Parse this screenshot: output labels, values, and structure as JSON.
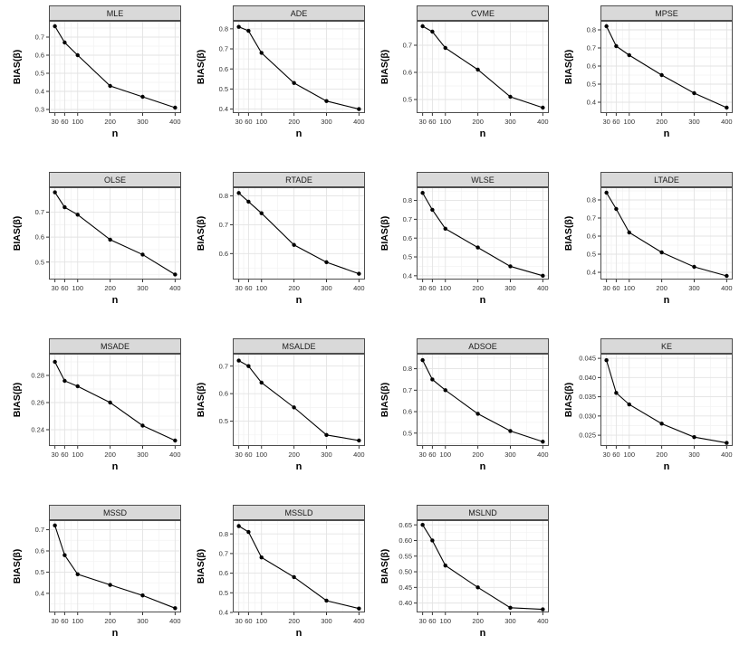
{
  "figure": {
    "xlabel": "n",
    "ylabel": "BIAS(β)",
    "x": [
      30,
      60,
      100,
      200,
      300,
      400
    ],
    "xtick_labels": [
      "30",
      "60",
      "100",
      "200",
      "300",
      "400"
    ],
    "x_minor": [
      45,
      80,
      150,
      250,
      350
    ],
    "colors": {
      "line": "#000000",
      "point": "#000000",
      "strip_bg": "#d9d9d9",
      "panel_border": "#4d4d4d",
      "grid_major": "#e3e3e3",
      "grid_minor": "#f2f2f2",
      "text": "#1a1a1a"
    }
  },
  "chart_data": [
    {
      "type": "line",
      "title": "MLE",
      "x": [
        30,
        60,
        100,
        200,
        300,
        400
      ],
      "values": [
        0.76,
        0.67,
        0.6,
        0.43,
        0.37,
        0.31
      ],
      "ytick_labels": [
        "0.3",
        "0.4",
        "0.5",
        "0.6",
        "0.7"
      ],
      "ylim": [
        0.28,
        0.79
      ],
      "xlabel": "n",
      "ylabel": "BIAS(β)"
    },
    {
      "type": "line",
      "title": "ADE",
      "x": [
        30,
        60,
        100,
        200,
        300,
        400
      ],
      "values": [
        0.81,
        0.79,
        0.68,
        0.53,
        0.44,
        0.4
      ],
      "ytick_labels": [
        "0.4",
        "0.5",
        "0.6",
        "0.7",
        "0.8"
      ],
      "ylim": [
        0.38,
        0.84
      ],
      "xlabel": "n",
      "ylabel": "BIAS(β)"
    },
    {
      "type": "line",
      "title": "CVME",
      "x": [
        30,
        60,
        100,
        200,
        300,
        400
      ],
      "values": [
        0.77,
        0.75,
        0.69,
        0.61,
        0.51,
        0.47
      ],
      "ytick_labels": [
        "0.5",
        "0.6",
        "0.7"
      ],
      "ylim": [
        0.45,
        0.79
      ],
      "xlabel": "n",
      "ylabel": "BIAS(β)"
    },
    {
      "type": "line",
      "title": "MPSE",
      "x": [
        30,
        60,
        100,
        200,
        300,
        400
      ],
      "values": [
        0.82,
        0.71,
        0.66,
        0.55,
        0.45,
        0.37
      ],
      "ytick_labels": [
        "0.4",
        "0.5",
        "0.6",
        "0.7",
        "0.8"
      ],
      "ylim": [
        0.34,
        0.85
      ],
      "xlabel": "n",
      "ylabel": "BIAS(β)"
    },
    {
      "type": "line",
      "title": "OLSE",
      "x": [
        30,
        60,
        100,
        200,
        300,
        400
      ],
      "values": [
        0.78,
        0.72,
        0.69,
        0.59,
        0.53,
        0.45
      ],
      "ytick_labels": [
        "0.5",
        "0.6",
        "0.7"
      ],
      "ylim": [
        0.43,
        0.8
      ],
      "xlabel": "n",
      "ylabel": "BIAS(β)"
    },
    {
      "type": "line",
      "title": "RTADE",
      "x": [
        30,
        60,
        100,
        200,
        300,
        400
      ],
      "values": [
        0.81,
        0.78,
        0.74,
        0.63,
        0.57,
        0.53
      ],
      "ytick_labels": [
        "0.6",
        "0.7",
        "0.8"
      ],
      "ylim": [
        0.51,
        0.83
      ],
      "xlabel": "n",
      "ylabel": "BIAS(β)"
    },
    {
      "type": "line",
      "title": "WLSE",
      "x": [
        30,
        60,
        100,
        200,
        300,
        400
      ],
      "values": [
        0.84,
        0.75,
        0.65,
        0.55,
        0.45,
        0.4
      ],
      "ytick_labels": [
        "0.4",
        "0.5",
        "0.6",
        "0.7",
        "0.8"
      ],
      "ylim": [
        0.38,
        0.87
      ],
      "xlabel": "n",
      "ylabel": "BIAS(β)"
    },
    {
      "type": "line",
      "title": "LTADE",
      "x": [
        30,
        60,
        100,
        200,
        300,
        400
      ],
      "values": [
        0.84,
        0.75,
        0.62,
        0.51,
        0.43,
        0.38
      ],
      "ytick_labels": [
        "0.4",
        "0.5",
        "0.6",
        "0.7",
        "0.8"
      ],
      "ylim": [
        0.36,
        0.87
      ],
      "xlabel": "n",
      "ylabel": "BIAS(β)"
    },
    {
      "type": "line",
      "title": "MSADE",
      "x": [
        30,
        60,
        100,
        200,
        300,
        400
      ],
      "values": [
        0.29,
        0.276,
        0.272,
        0.26,
        0.243,
        0.232
      ],
      "ytick_labels": [
        "0.24",
        "0.26",
        "0.28"
      ],
      "ylim": [
        0.228,
        0.296
      ],
      "xlabel": "n",
      "ylabel": "BIAS(β)"
    },
    {
      "type": "line",
      "title": "MSALDE",
      "x": [
        30,
        60,
        100,
        200,
        300,
        400
      ],
      "values": [
        0.72,
        0.7,
        0.64,
        0.55,
        0.45,
        0.43
      ],
      "ytick_labels": [
        "0.5",
        "0.6",
        "0.7"
      ],
      "ylim": [
        0.41,
        0.745
      ],
      "xlabel": "n",
      "ylabel": "BIAS(β)"
    },
    {
      "type": "line",
      "title": "ADSOE",
      "x": [
        30,
        60,
        100,
        200,
        300,
        400
      ],
      "values": [
        0.84,
        0.75,
        0.7,
        0.59,
        0.51,
        0.46
      ],
      "ytick_labels": [
        "0.5",
        "0.6",
        "0.7",
        "0.8"
      ],
      "ylim": [
        0.44,
        0.87
      ],
      "xlabel": "n",
      "ylabel": "BIAS(β)"
    },
    {
      "type": "line",
      "title": "KE",
      "x": [
        30,
        60,
        100,
        200,
        300,
        400
      ],
      "values": [
        0.0445,
        0.036,
        0.033,
        0.028,
        0.0245,
        0.023
      ],
      "ytick_labels": [
        "0.025",
        "0.030",
        "0.035",
        "0.040",
        "0.045"
      ],
      "ylim": [
        0.0222,
        0.0462
      ],
      "xlabel": "n",
      "ylabel": "BIAS(β)"
    },
    {
      "type": "line",
      "title": "MSSD",
      "x": [
        30,
        60,
        100,
        200,
        300,
        400
      ],
      "values": [
        0.72,
        0.58,
        0.49,
        0.44,
        0.39,
        0.33
      ],
      "ytick_labels": [
        "0.4",
        "0.5",
        "0.6",
        "0.7"
      ],
      "ylim": [
        0.31,
        0.745
      ],
      "xlabel": "n",
      "ylabel": "BIAS(β)"
    },
    {
      "type": "line",
      "title": "MSSLD",
      "x": [
        30,
        60,
        100,
        200,
        300,
        400
      ],
      "values": [
        0.84,
        0.81,
        0.68,
        0.58,
        0.46,
        0.42
      ],
      "ytick_labels": [
        "0.4",
        "0.5",
        "0.6",
        "0.7",
        "0.8"
      ],
      "ylim": [
        0.4,
        0.87
      ],
      "xlabel": "n",
      "ylabel": "BIAS(β)"
    },
    {
      "type": "line",
      "title": "MSLND",
      "x": [
        30,
        60,
        100,
        200,
        300,
        400
      ],
      "values": [
        0.65,
        0.6,
        0.52,
        0.45,
        0.385,
        0.38
      ],
      "ytick_labels": [
        "0.40",
        "0.45",
        "0.50",
        "0.55",
        "0.60",
        "0.65"
      ],
      "ylim": [
        0.37,
        0.665
      ],
      "xlabel": "n",
      "ylabel": "BIAS(β)"
    }
  ]
}
